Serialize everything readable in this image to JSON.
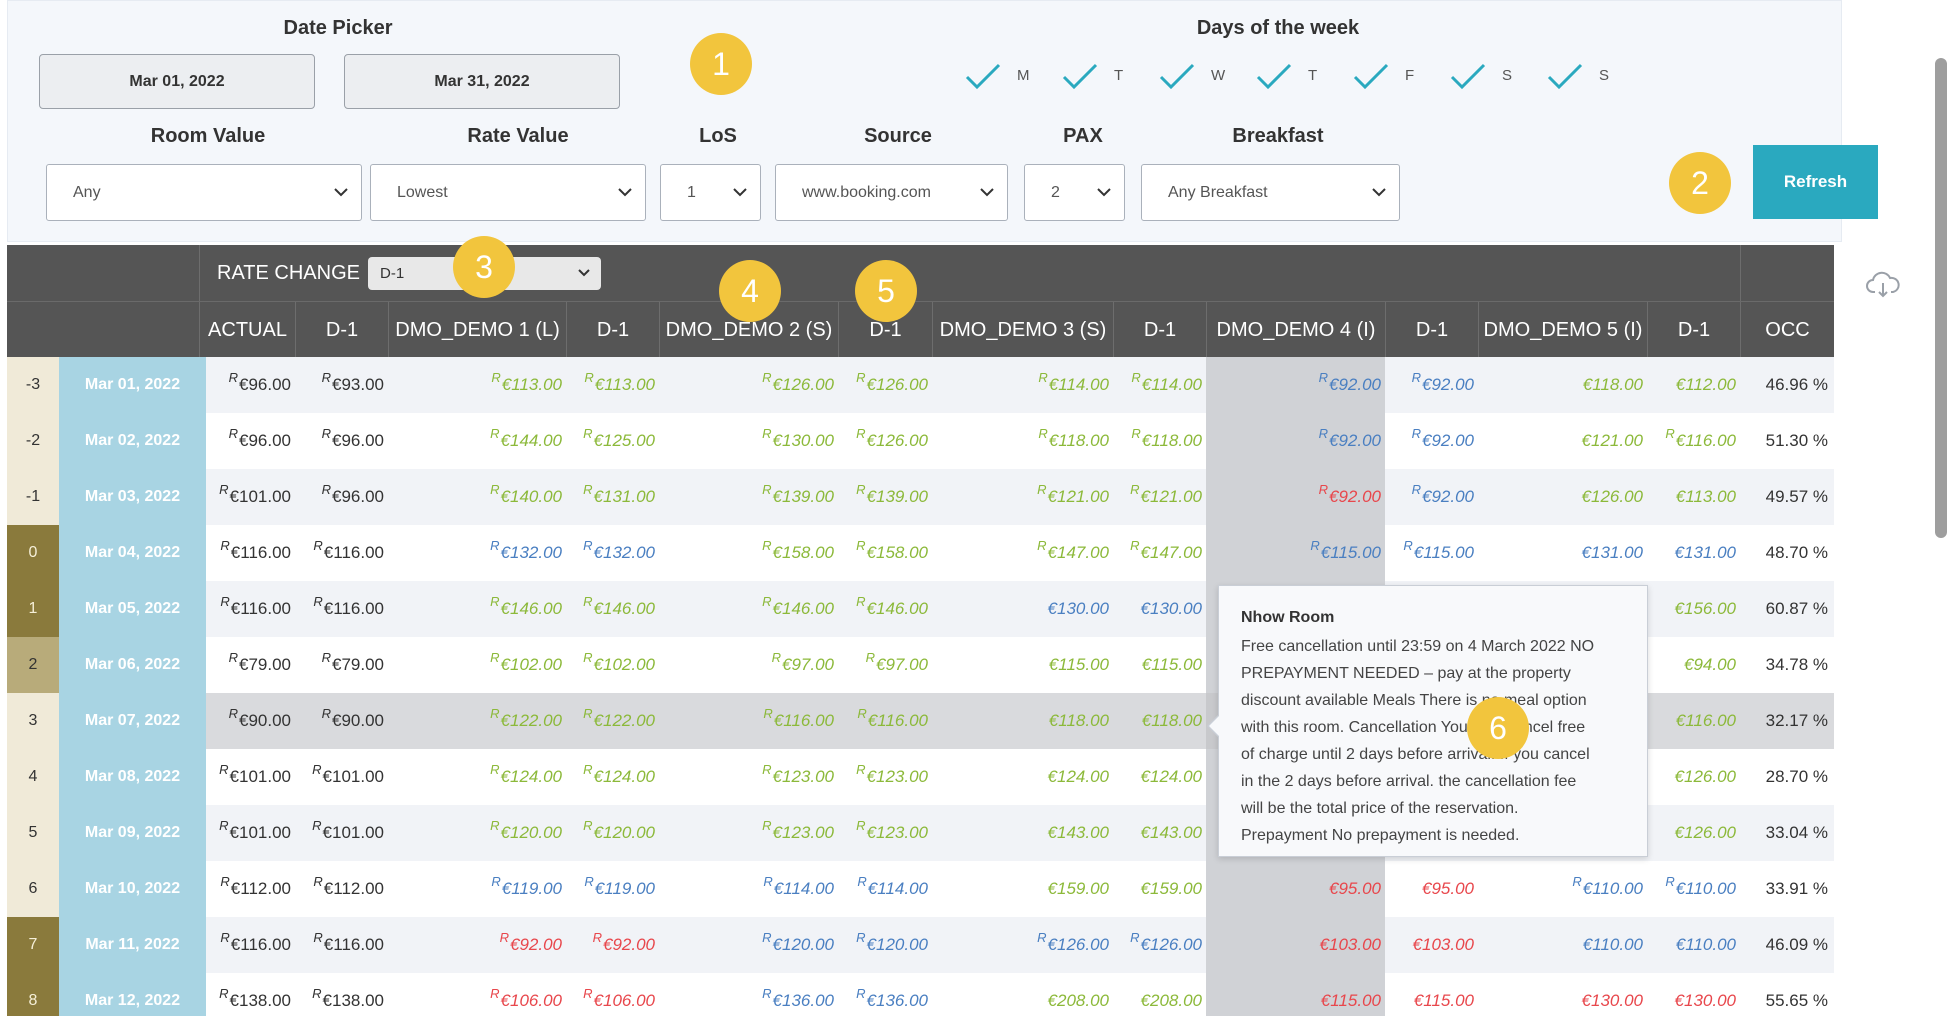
{
  "filters": {
    "date_picker_label": "Date Picker",
    "date_from": "Mar 01, 2022",
    "date_to": "Mar 31, 2022",
    "days_label": "Days of the week",
    "days": [
      "M",
      "T",
      "W",
      "T",
      "F",
      "S",
      "S"
    ],
    "room_value_label": "Room Value",
    "room_value": "Any",
    "rate_value_label": "Rate Value",
    "rate_value": "Lowest",
    "los_label": "LoS",
    "los": "1",
    "source_label": "Source",
    "source": "www.booking.com",
    "pax_label": "PAX",
    "pax": "2",
    "breakfast_label": "Breakfast",
    "breakfast": "Any Breakfast",
    "refresh_label": "Refresh"
  },
  "badges": [
    "1",
    "2",
    "3",
    "4",
    "5",
    "6"
  ],
  "table": {
    "rate_change_label": "RATE CHANGE",
    "rate_change_value": "D-1",
    "columns": [
      "ACTUAL",
      "D-1",
      "DMO_DEMO 1 (L)",
      "D-1",
      "DMO_DEMO 2 (S)",
      "D-1",
      "DMO_DEMO 3 (S)",
      "D-1",
      "DMO_DEMO 4 (I)",
      "D-1",
      "DMO_DEMO 5 (I)",
      "D-1",
      "OCC"
    ],
    "colors": {
      "green": "#8cb93a",
      "blue": "#4a7fc1",
      "red": "#e8474c",
      "dark": "#333333",
      "date_bg": "#a8d4e3",
      "olive": "#8a7a3c",
      "olive_light": "#b8ab7a",
      "beige": "#f0ead8",
      "header": "#555555",
      "accent_button": "#2aa9bf",
      "badge": "#f2c53d"
    },
    "rows": [
      {
        "idx": "-3",
        "idx_style": "beige",
        "date": "Mar 01, 2022",
        "cells": [
          [
            "€96.00",
            "dark",
            1
          ],
          [
            "€93.00",
            "dark",
            1
          ],
          [
            "€113.00",
            "green",
            1
          ],
          [
            "€113.00",
            "green",
            1
          ],
          [
            "€126.00",
            "green",
            1
          ],
          [
            "€126.00",
            "green",
            1
          ],
          [
            "€114.00",
            "green",
            1
          ],
          [
            "€114.00",
            "green",
            1
          ],
          [
            "€92.00",
            "blue",
            1
          ],
          [
            "€92.00",
            "blue",
            1
          ],
          [
            "€118.00",
            "green",
            0
          ],
          [
            "€112.00",
            "green",
            0
          ]
        ],
        "occ": "46.96 %"
      },
      {
        "idx": "-2",
        "idx_style": "beige",
        "date": "Mar 02, 2022",
        "cells": [
          [
            "€96.00",
            "dark",
            1
          ],
          [
            "€96.00",
            "dark",
            1
          ],
          [
            "€144.00",
            "green",
            1
          ],
          [
            "€125.00",
            "green",
            1
          ],
          [
            "€130.00",
            "green",
            1
          ],
          [
            "€126.00",
            "green",
            1
          ],
          [
            "€118.00",
            "green",
            1
          ],
          [
            "€118.00",
            "green",
            1
          ],
          [
            "€92.00",
            "blue",
            1
          ],
          [
            "€92.00",
            "blue",
            1
          ],
          [
            "€121.00",
            "green",
            0
          ],
          [
            "€116.00",
            "green",
            1
          ]
        ],
        "occ": "51.30 %"
      },
      {
        "idx": "-1",
        "idx_style": "beige",
        "date": "Mar 03, 2022",
        "cells": [
          [
            "€101.00",
            "dark",
            1
          ],
          [
            "€96.00",
            "dark",
            1
          ],
          [
            "€140.00",
            "green",
            1
          ],
          [
            "€131.00",
            "green",
            1
          ],
          [
            "€139.00",
            "green",
            1
          ],
          [
            "€139.00",
            "green",
            1
          ],
          [
            "€121.00",
            "green",
            1
          ],
          [
            "€121.00",
            "green",
            1
          ],
          [
            "€92.00",
            "red",
            1
          ],
          [
            "€92.00",
            "blue",
            1
          ],
          [
            "€126.00",
            "green",
            0
          ],
          [
            "€113.00",
            "green",
            0
          ]
        ],
        "occ": "49.57 %"
      },
      {
        "idx": "0",
        "idx_style": "olive",
        "date": "Mar 04, 2022",
        "cells": [
          [
            "€116.00",
            "dark",
            1
          ],
          [
            "€116.00",
            "dark",
            1
          ],
          [
            "€132.00",
            "blue",
            1
          ],
          [
            "€132.00",
            "blue",
            1
          ],
          [
            "€158.00",
            "green",
            1
          ],
          [
            "€158.00",
            "green",
            1
          ],
          [
            "€147.00",
            "green",
            1
          ],
          [
            "€147.00",
            "green",
            1
          ],
          [
            "€115.00",
            "blue",
            1
          ],
          [
            "€115.00",
            "blue",
            1
          ],
          [
            "€131.00",
            "blue",
            0
          ],
          [
            "€131.00",
            "blue",
            0
          ]
        ],
        "occ": "48.70 %"
      },
      {
        "idx": "1",
        "idx_style": "olive",
        "date": "Mar 05, 2022",
        "cells": [
          [
            "€116.00",
            "dark",
            1
          ],
          [
            "€116.00",
            "dark",
            1
          ],
          [
            "€146.00",
            "green",
            1
          ],
          [
            "€146.00",
            "green",
            1
          ],
          [
            "€146.00",
            "green",
            1
          ],
          [
            "€146.00",
            "green",
            1
          ],
          [
            "€130.00",
            "blue",
            0
          ],
          [
            "€130.00",
            "blue",
            0
          ],
          [
            "",
            "dark",
            0
          ],
          [
            "",
            "dark",
            0
          ],
          [
            "",
            "dark",
            0
          ],
          [
            "€156.00",
            "green",
            0
          ]
        ],
        "occ": "60.87 %"
      },
      {
        "idx": "2",
        "idx_style": "olive_light",
        "date": "Mar 06, 2022",
        "cells": [
          [
            "€79.00",
            "dark",
            1
          ],
          [
            "€79.00",
            "dark",
            1
          ],
          [
            "€102.00",
            "green",
            1
          ],
          [
            "€102.00",
            "green",
            1
          ],
          [
            "€97.00",
            "green",
            1
          ],
          [
            "€97.00",
            "green",
            1
          ],
          [
            "€115.00",
            "green",
            0
          ],
          [
            "€115.00",
            "green",
            0
          ],
          [
            "",
            "dark",
            0
          ],
          [
            "",
            "dark",
            0
          ],
          [
            "",
            "dark",
            0
          ],
          [
            "€94.00",
            "green",
            0
          ]
        ],
        "occ": "34.78 %"
      },
      {
        "idx": "3",
        "idx_style": "beige",
        "date": "Mar 07, 2022",
        "highlight": true,
        "cells": [
          [
            "€90.00",
            "dark",
            1
          ],
          [
            "€90.00",
            "dark",
            1
          ],
          [
            "€122.00",
            "green",
            1
          ],
          [
            "€122.00",
            "green",
            1
          ],
          [
            "€116.00",
            "green",
            1
          ],
          [
            "€116.00",
            "green",
            1
          ],
          [
            "€118.00",
            "green",
            0
          ],
          [
            "€118.00",
            "green",
            0
          ],
          [
            "",
            "dark",
            0
          ],
          [
            "",
            "dark",
            0
          ],
          [
            "",
            "dark",
            0
          ],
          [
            "€116.00",
            "green",
            0
          ]
        ],
        "occ": "32.17 %"
      },
      {
        "idx": "4",
        "idx_style": "beige",
        "date": "Mar 08, 2022",
        "cells": [
          [
            "€101.00",
            "dark",
            1
          ],
          [
            "€101.00",
            "dark",
            1
          ],
          [
            "€124.00",
            "green",
            1
          ],
          [
            "€124.00",
            "green",
            1
          ],
          [
            "€123.00",
            "green",
            1
          ],
          [
            "€123.00",
            "green",
            1
          ],
          [
            "€124.00",
            "green",
            0
          ],
          [
            "€124.00",
            "green",
            0
          ],
          [
            "",
            "dark",
            0
          ],
          [
            "",
            "dark",
            0
          ],
          [
            "",
            "dark",
            0
          ],
          [
            "€126.00",
            "green",
            0
          ]
        ],
        "occ": "28.70 %"
      },
      {
        "idx": "5",
        "idx_style": "beige",
        "date": "Mar 09, 2022",
        "cells": [
          [
            "€101.00",
            "dark",
            1
          ],
          [
            "€101.00",
            "dark",
            1
          ],
          [
            "€120.00",
            "green",
            1
          ],
          [
            "€120.00",
            "green",
            1
          ],
          [
            "€123.00",
            "green",
            1
          ],
          [
            "€123.00",
            "green",
            1
          ],
          [
            "€143.00",
            "green",
            0
          ],
          [
            "€143.00",
            "green",
            0
          ],
          [
            "",
            "dark",
            0
          ],
          [
            "",
            "dark",
            0
          ],
          [
            "",
            "dark",
            0
          ],
          [
            "€126.00",
            "green",
            0
          ]
        ],
        "occ": "33.04 %"
      },
      {
        "idx": "6",
        "idx_style": "beige",
        "date": "Mar 10, 2022",
        "cells": [
          [
            "€112.00",
            "dark",
            1
          ],
          [
            "€112.00",
            "dark",
            1
          ],
          [
            "€119.00",
            "blue",
            1
          ],
          [
            "€119.00",
            "blue",
            1
          ],
          [
            "€114.00",
            "blue",
            1
          ],
          [
            "€114.00",
            "blue",
            1
          ],
          [
            "€159.00",
            "green",
            0
          ],
          [
            "€159.00",
            "green",
            0
          ],
          [
            "€95.00",
            "red",
            0
          ],
          [
            "€95.00",
            "red",
            0
          ],
          [
            "€110.00",
            "blue",
            1
          ],
          [
            "€110.00",
            "blue",
            1
          ]
        ],
        "occ": "33.91 %"
      },
      {
        "idx": "7",
        "idx_style": "olive",
        "date": "Mar 11, 2022",
        "cells": [
          [
            "€116.00",
            "dark",
            1
          ],
          [
            "€116.00",
            "dark",
            1
          ],
          [
            "€92.00",
            "red",
            1
          ],
          [
            "€92.00",
            "red",
            1
          ],
          [
            "€120.00",
            "blue",
            1
          ],
          [
            "€120.00",
            "blue",
            1
          ],
          [
            "€126.00",
            "blue",
            1
          ],
          [
            "€126.00",
            "blue",
            1
          ],
          [
            "€103.00",
            "red",
            0
          ],
          [
            "€103.00",
            "red",
            0
          ],
          [
            "€110.00",
            "blue",
            0
          ],
          [
            "€110.00",
            "blue",
            0
          ]
        ],
        "occ": "46.09 %"
      },
      {
        "idx": "8",
        "idx_style": "olive",
        "date": "Mar 12, 2022",
        "cells": [
          [
            "€138.00",
            "dark",
            1
          ],
          [
            "€138.00",
            "dark",
            1
          ],
          [
            "€106.00",
            "red",
            1
          ],
          [
            "€106.00",
            "red",
            1
          ],
          [
            "€136.00",
            "blue",
            1
          ],
          [
            "€136.00",
            "blue",
            1
          ],
          [
            "€208.00",
            "green",
            0
          ],
          [
            "€208.00",
            "green",
            0
          ],
          [
            "€115.00",
            "red",
            0
          ],
          [
            "€115.00",
            "red",
            0
          ],
          [
            "€130.00",
            "red",
            0
          ],
          [
            "€130.00",
            "red",
            0
          ]
        ],
        "occ": "55.65 %"
      }
    ],
    "rate_marker": "R"
  },
  "tooltip": {
    "title": "Nhow Room",
    "lines": [
      "Free cancellation until 23:59 on 4 March 2022 NO",
      "PREPAYMENT NEEDED – pay at the property",
      "discount available Meals There is no meal option",
      "with this room. Cancellation You may cancel free",
      "of charge until 2 days before arrival. If you cancel",
      "in the 2 days before arrival. the cancellation fee",
      "will be the total price of the reservation.",
      "Prepayment No prepayment is needed."
    ]
  },
  "icons": {
    "download": "cloud-download-icon",
    "check": "check-icon",
    "chevron": "chevron-down-icon"
  }
}
